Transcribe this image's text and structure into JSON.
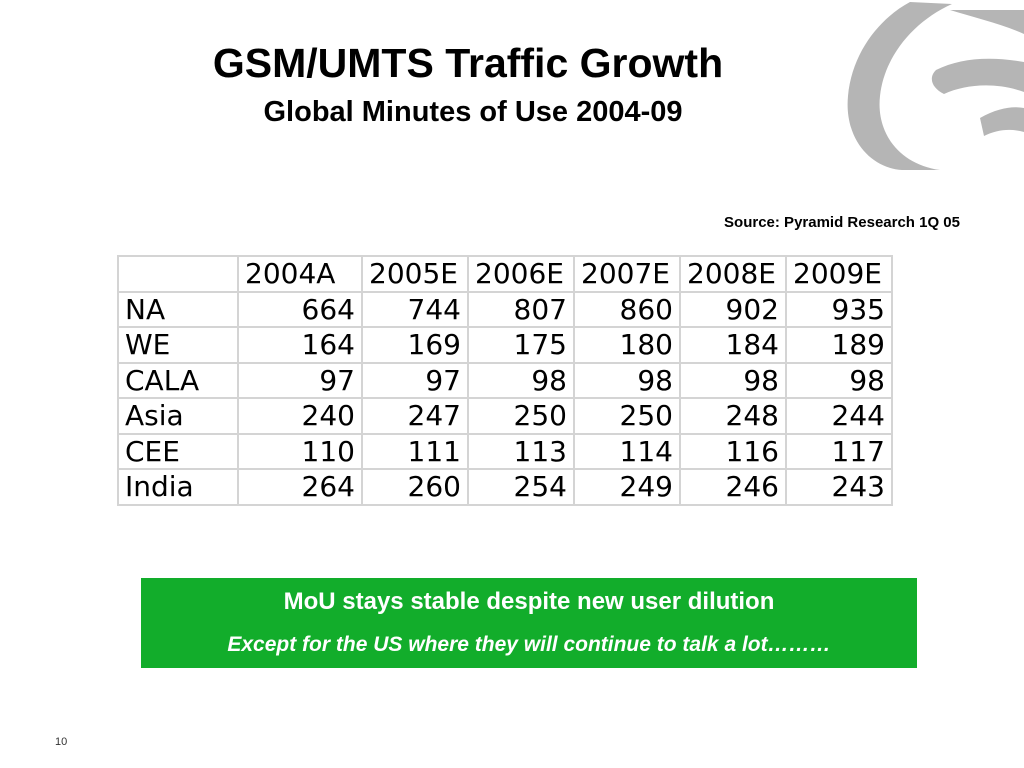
{
  "slide": {
    "title": "GSM/UMTS Traffic Growth",
    "subtitle": "Global Minutes of Use 2004-09",
    "source": "Source: Pyramid Research 1Q 05",
    "page_number": "10"
  },
  "table": {
    "corner": "",
    "columns": [
      "2004A",
      "2005E",
      "2006E",
      "2007E",
      "2008E",
      "2009E"
    ],
    "rows": [
      {
        "label": "NA",
        "values": [
          "664",
          "744",
          "807",
          "860",
          "902",
          "935"
        ]
      },
      {
        "label": "WE",
        "values": [
          "164",
          "169",
          "175",
          "180",
          "184",
          "189"
        ]
      },
      {
        "label": "CALA",
        "values": [
          "97",
          "97",
          "98",
          "98",
          "98",
          "98"
        ]
      },
      {
        "label": "Asia",
        "values": [
          "240",
          "247",
          "250",
          "250",
          "248",
          "244"
        ]
      },
      {
        "label": "CEE",
        "values": [
          "110",
          "111",
          "113",
          "114",
          "116",
          "117"
        ]
      },
      {
        "label": "India",
        "values": [
          "264",
          "260",
          "254",
          "249",
          "246",
          "243"
        ]
      }
    ]
  },
  "callout": {
    "headline": "MoU stays stable despite new user dilution",
    "note": "Except for the US where they will continue to talk a lot………"
  },
  "colors": {
    "callout_background": "#12ad2b",
    "logo_gray": "#b3b3b3",
    "grid_lines": "#d4d4d4"
  },
  "icons": {
    "logo": "globe-logo-icon"
  }
}
